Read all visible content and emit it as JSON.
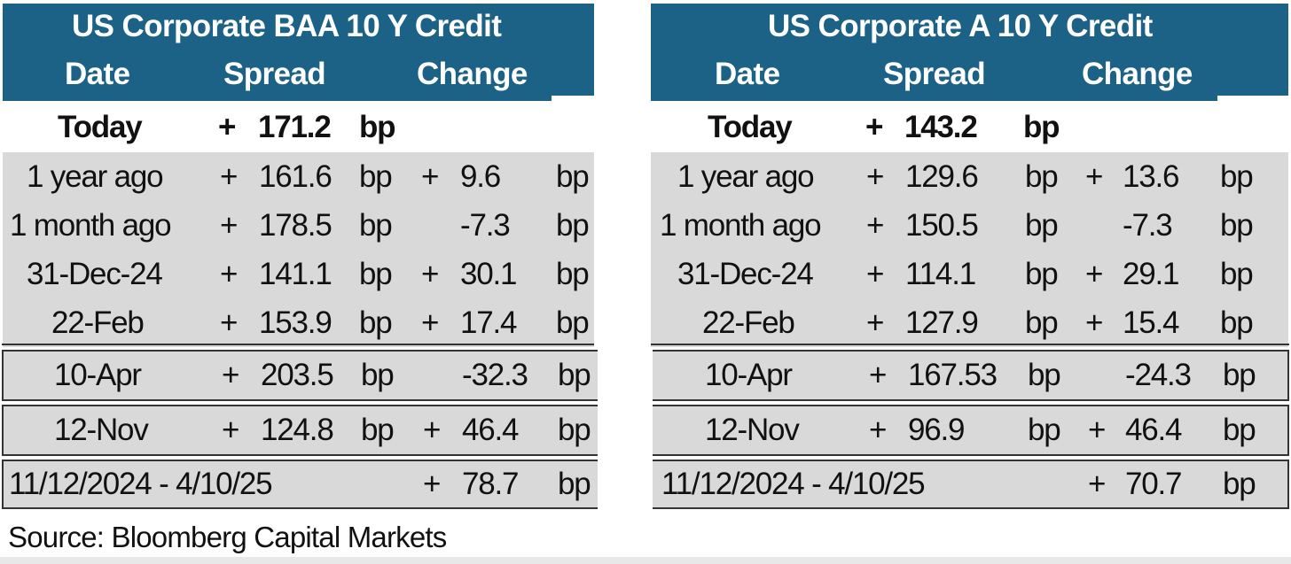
{
  "left": {
    "title": "US Corporate BAA 10 Y  Credit",
    "col_date": "Date",
    "col_spread": "Spread",
    "col_change": "Change",
    "today": {
      "label": "Today",
      "sign": "+",
      "value": "171.2",
      "unit": "bp"
    },
    "rows": [
      {
        "label": "1 year ago",
        "sign": "+",
        "value": "161.6",
        "unit": "bp",
        "chg_sign": "+",
        "chg": "9.6",
        "chg_unit": "bp"
      },
      {
        "label": "1 month ago",
        "sign": "+",
        "value": "178.5",
        "unit": "bp",
        "chg_sign": "",
        "chg": "-7.3",
        "chg_unit": "bp"
      },
      {
        "label": "31-Dec-24",
        "sign": "+",
        "value": "141.1",
        "unit": "bp",
        "chg_sign": "+",
        "chg": "30.1",
        "chg_unit": "bp"
      },
      {
        "label": "22-Feb",
        "sign": "+",
        "value": "153.9",
        "unit": "bp",
        "chg_sign": "+",
        "chg": "17.4",
        "chg_unit": "bp"
      }
    ],
    "apr": {
      "label": "10-Apr",
      "sign": "+",
      "value": "203.5",
      "unit": "bp",
      "chg_sign": "",
      "chg": "-32.3",
      "chg_unit": "bp"
    },
    "nov": {
      "label": "12-Nov",
      "sign": "+",
      "value": "124.8",
      "unit": "bp",
      "chg_sign": "+",
      "chg": "46.4",
      "chg_unit": "bp"
    },
    "range": {
      "label": "11/12/2024 - 4/10/25",
      "chg_sign": "+",
      "chg": "78.7",
      "chg_unit": "bp"
    }
  },
  "right": {
    "title": "US Corporate A 10 Y Credit",
    "col_date": "Date",
    "col_spread": "Spread",
    "col_change": "Change",
    "today": {
      "label": "Today",
      "sign": "+",
      "value": "143.2",
      "unit": "bp"
    },
    "rows": [
      {
        "label": "1 year ago",
        "sign": "+",
        "value": "129.6",
        "unit": "bp",
        "chg_sign": "+",
        "chg": "13.6",
        "chg_unit": "bp"
      },
      {
        "label": "1 month ago",
        "sign": "+",
        "value": "150.5",
        "unit": "bp",
        "chg_sign": "",
        "chg": "-7.3",
        "chg_unit": "bp"
      },
      {
        "label": "31-Dec-24",
        "sign": "+",
        "value": "114.1",
        "unit": "bp",
        "chg_sign": "+",
        "chg": "29.1",
        "chg_unit": "bp"
      },
      {
        "label": "22-Feb",
        "sign": "+",
        "value": "127.9",
        "unit": "bp",
        "chg_sign": "+",
        "chg": "15.4",
        "chg_unit": "bp"
      }
    ],
    "apr": {
      "label": "10-Apr",
      "sign": "+",
      "value": "167.53",
      "unit": "bp",
      "chg_sign": "",
      "chg": "-24.3",
      "chg_unit": "bp"
    },
    "nov": {
      "label": "12-Nov",
      "sign": "+",
      "value": "96.9",
      "unit": "bp",
      "chg_sign": "+",
      "chg": "46.4",
      "chg_unit": "bp"
    },
    "range": {
      "label": "11/12/2024 - 4/10/25",
      "chg_sign": "+",
      "chg": "70.7",
      "chg_unit": "bp"
    }
  },
  "source": "Source: Bloomberg Capital Markets",
  "colors": {
    "header_bg": "#1c6186",
    "row_bg": "#d9d9d9",
    "header_text": "#ffffff"
  }
}
